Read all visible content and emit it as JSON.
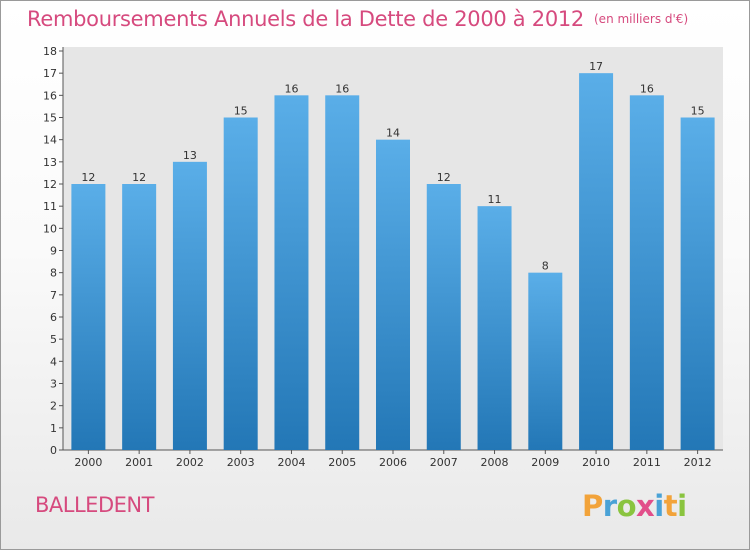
{
  "header": {
    "title": "Remboursements Annuels de la Dette de 2000 à 2012",
    "unit_note": "(en milliers d'€)"
  },
  "footer": {
    "commune": "BALLEDENT",
    "brand_letters": [
      "P",
      "r",
      "o",
      "x",
      "i",
      "t",
      "i"
    ],
    "brand_colors": [
      "#f2a33a",
      "#4aa2d6",
      "#8ac43f",
      "#e24e8a",
      "#4aa2d6",
      "#f2a33a",
      "#8ac43f"
    ]
  },
  "chart_data": {
    "type": "bar",
    "title": "Remboursements Annuels de la Dette de 2000 à 2012",
    "subtitle": "(en milliers d'€)",
    "categories": [
      "2000",
      "2001",
      "2002",
      "2003",
      "2004",
      "2005",
      "2006",
      "2007",
      "2008",
      "2009",
      "2010",
      "2011",
      "2012"
    ],
    "values": [
      12,
      12,
      13,
      15,
      16,
      16,
      14,
      12,
      11,
      8,
      17,
      16,
      15
    ],
    "data_labels": [
      "12",
      "12",
      "13",
      "15",
      "16",
      "16",
      "14",
      "12",
      "11",
      "8",
      "17",
      "16",
      "15"
    ],
    "y_ticks": [
      "0",
      "1",
      "2",
      "3",
      "4",
      "5",
      "6",
      "7",
      "8",
      "9",
      "10",
      "11",
      "12",
      "13",
      "14",
      "15",
      "16",
      "17",
      "18"
    ],
    "ylim": [
      0,
      18
    ],
    "grid": false,
    "bar_color_top": "#5aaee8",
    "bar_color_bottom": "#2377b6",
    "plot_background": "#e6e6e6",
    "axis_color": "#555555",
    "text_color": "#333333"
  }
}
